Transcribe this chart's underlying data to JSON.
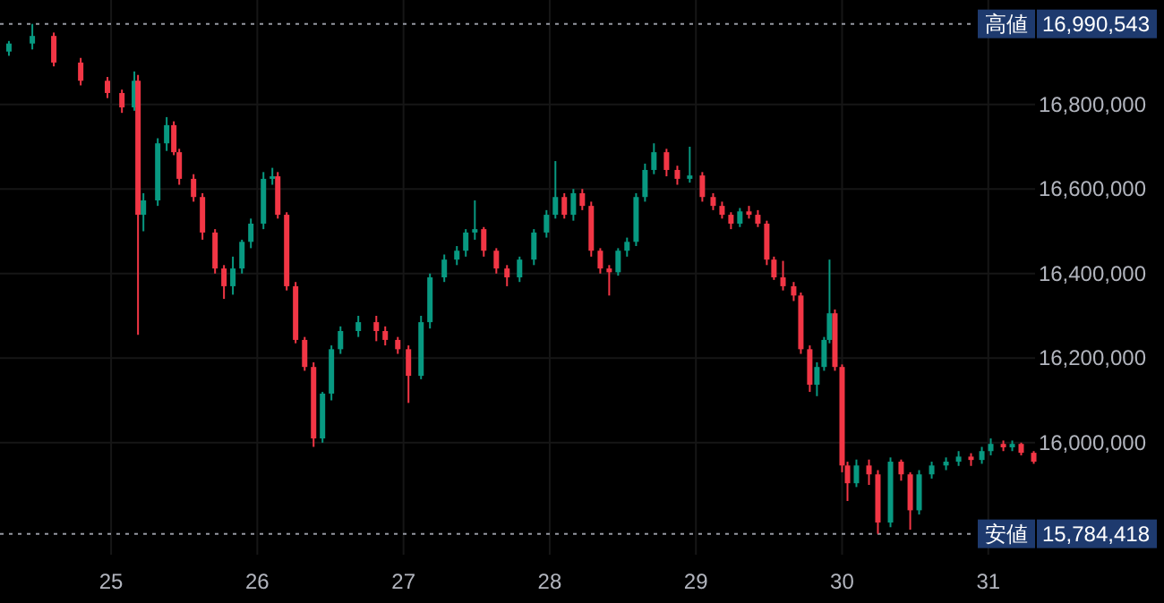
{
  "chart_data": {
    "type": "candlestick",
    "x": [
      24.301,
      24.461,
      24.608,
      24.792,
      24.975,
      25.074,
      25.159,
      25.184,
      25.221,
      25.319,
      25.38,
      25.429,
      25.466,
      25.564,
      25.625,
      25.711,
      25.772,
      25.833,
      25.895,
      25.956,
      26.042,
      26.103,
      26.14,
      26.201,
      26.262,
      26.324,
      26.385,
      26.446,
      26.507,
      26.569,
      26.691,
      26.814,
      26.875,
      26.961,
      27.034,
      27.12,
      27.181,
      27.279,
      27.365,
      27.426,
      27.488,
      27.549,
      27.635,
      27.708,
      27.794,
      27.892,
      27.978,
      28.039,
      28.1,
      28.162,
      28.223,
      28.284,
      28.346,
      28.407,
      28.468,
      28.529,
      28.591,
      28.652,
      28.713,
      28.799,
      28.873,
      28.958,
      29.044,
      29.118,
      29.179,
      29.24,
      29.301,
      29.363,
      29.424,
      29.485,
      29.534,
      29.596,
      29.669,
      29.718,
      29.779,
      29.828,
      29.877,
      29.914,
      29.951,
      30.0,
      30.037,
      30.098,
      30.184,
      30.245,
      30.331,
      30.404,
      30.466,
      30.527,
      30.613,
      30.711,
      30.797,
      30.882,
      30.956,
      31.017,
      31.103,
      31.164,
      31.225,
      31.311
    ],
    "ohlc": [
      [
        16925000,
        16950000,
        16915000,
        16944000
      ],
      [
        16944000,
        16990543,
        16930000,
        16962000
      ],
      [
        16962000,
        16970000,
        16890000,
        16899000
      ],
      [
        16899000,
        16910000,
        16845000,
        16856000
      ],
      [
        16856000,
        16865000,
        16815000,
        16827000
      ],
      [
        16827000,
        16835000,
        16780000,
        16793000
      ],
      [
        16793000,
        16878000,
        16785000,
        16856000
      ],
      [
        16856000,
        16870000,
        16255000,
        16539000
      ],
      [
        16539000,
        16590000,
        16500000,
        16573000
      ],
      [
        16573000,
        16720000,
        16560000,
        16708000
      ],
      [
        16708000,
        16770000,
        16690000,
        16751000
      ],
      [
        16751000,
        16760000,
        16680000,
        16687000
      ],
      [
        16687000,
        16695000,
        16610000,
        16624000
      ],
      [
        16624000,
        16635000,
        16570000,
        16581000
      ],
      [
        16581000,
        16590000,
        16480000,
        16497000
      ],
      [
        16497000,
        16505000,
        16400000,
        16412000
      ],
      [
        16412000,
        16420000,
        16340000,
        16370000
      ],
      [
        16370000,
        16440000,
        16350000,
        16412000
      ],
      [
        16412000,
        16480000,
        16400000,
        16475000
      ],
      [
        16475000,
        16530000,
        16460000,
        16518000
      ],
      [
        16518000,
        16640000,
        16505000,
        16624000
      ],
      [
        16624000,
        16650000,
        16610000,
        16630000
      ],
      [
        16630000,
        16640000,
        16530000,
        16539000
      ],
      [
        16539000,
        16545000,
        16360000,
        16370000
      ],
      [
        16370000,
        16380000,
        16235000,
        16243000
      ],
      [
        16243000,
        16250000,
        16170000,
        16179000
      ],
      [
        16179000,
        16190000,
        15990000,
        16010000
      ],
      [
        16010000,
        16120000,
        16000000,
        16116000
      ],
      [
        16116000,
        16230000,
        16100000,
        16221000
      ],
      [
        16221000,
        16275000,
        16210000,
        16264000
      ],
      [
        16264000,
        16300000,
        16250000,
        16285000
      ],
      [
        16285000,
        16300000,
        16240000,
        16264000
      ],
      [
        16264000,
        16275000,
        16230000,
        16243000
      ],
      [
        16243000,
        16250000,
        16210000,
        16221000
      ],
      [
        16221000,
        16230000,
        16094000,
        16158000
      ],
      [
        16158000,
        16300000,
        16150000,
        16285000
      ],
      [
        16285000,
        16400000,
        16270000,
        16391000
      ],
      [
        16391000,
        16445000,
        16380000,
        16433000
      ],
      [
        16433000,
        16465000,
        16420000,
        16454000
      ],
      [
        16454000,
        16505000,
        16440000,
        16497000
      ],
      [
        16497000,
        16573000,
        16480000,
        16505000
      ],
      [
        16505000,
        16510000,
        16440000,
        16454000
      ],
      [
        16454000,
        16460000,
        16400000,
        16412000
      ],
      [
        16412000,
        16420000,
        16370000,
        16391000
      ],
      [
        16391000,
        16440000,
        16380000,
        16433000
      ],
      [
        16433000,
        16505000,
        16420000,
        16497000
      ],
      [
        16497000,
        16550000,
        16485000,
        16539000
      ],
      [
        16539000,
        16666000,
        16530000,
        16581000
      ],
      [
        16581000,
        16590000,
        16530000,
        16539000
      ],
      [
        16539000,
        16600000,
        16525000,
        16590000
      ],
      [
        16590000,
        16600000,
        16550000,
        16560000
      ],
      [
        16560000,
        16570000,
        16440000,
        16454000
      ],
      [
        16454000,
        16460000,
        16400000,
        16412000
      ],
      [
        16412000,
        16420000,
        16348000,
        16403000
      ],
      [
        16403000,
        16460000,
        16395000,
        16454000
      ],
      [
        16454000,
        16485000,
        16440000,
        16475000
      ],
      [
        16475000,
        16590000,
        16465000,
        16581000
      ],
      [
        16581000,
        16660000,
        16570000,
        16645000
      ],
      [
        16645000,
        16708000,
        16635000,
        16687000
      ],
      [
        16687000,
        16695000,
        16630000,
        16645000
      ],
      [
        16645000,
        16655000,
        16610000,
        16624000
      ],
      [
        16624000,
        16700000,
        16615000,
        16632000
      ],
      [
        16632000,
        16640000,
        16570000,
        16581000
      ],
      [
        16581000,
        16590000,
        16550000,
        16560000
      ],
      [
        16560000,
        16570000,
        16530000,
        16539000
      ],
      [
        16539000,
        16545000,
        16505000,
        16518000
      ],
      [
        16518000,
        16555000,
        16510000,
        16547000
      ],
      [
        16547000,
        16560000,
        16530000,
        16539000
      ],
      [
        16539000,
        16550000,
        16510000,
        16518000
      ],
      [
        16518000,
        16525000,
        16420000,
        16433000
      ],
      [
        16433000,
        16440000,
        16385000,
        16391000
      ],
      [
        16391000,
        16430000,
        16360000,
        16370000
      ],
      [
        16370000,
        16380000,
        16335000,
        16348000
      ],
      [
        16348000,
        16355000,
        16210000,
        16221000
      ],
      [
        16221000,
        16230000,
        16120000,
        16137000
      ],
      [
        16137000,
        16190000,
        16110000,
        16179000
      ],
      [
        16179000,
        16250000,
        16170000,
        16243000
      ],
      [
        16243000,
        16433000,
        16235000,
        16306000
      ],
      [
        16306000,
        16315000,
        16170000,
        16179000
      ],
      [
        16179000,
        16185000,
        15930000,
        15946000
      ],
      [
        15946000,
        15955000,
        15862000,
        15904000
      ],
      [
        15904000,
        15960000,
        15895000,
        15946000
      ],
      [
        15946000,
        15960000,
        15900000,
        15925000
      ],
      [
        15925000,
        15935000,
        15784418,
        15811000
      ],
      [
        15811000,
        15965000,
        15800000,
        15955000
      ],
      [
        15955000,
        15960000,
        15910000,
        15925000
      ],
      [
        15925000,
        15930000,
        15794000,
        15840000
      ],
      [
        15840000,
        15935000,
        15830000,
        15925000
      ],
      [
        15925000,
        15955000,
        15915000,
        15946000
      ],
      [
        15946000,
        15965000,
        15935000,
        15955000
      ],
      [
        15955000,
        15980000,
        15945000,
        15967000
      ],
      [
        15967000,
        15975000,
        15945000,
        15959000
      ],
      [
        15959000,
        15990000,
        15950000,
        15980000
      ],
      [
        15980000,
        16010000,
        15970000,
        15997000
      ],
      [
        15997000,
        16005000,
        15980000,
        15989000
      ],
      [
        15989000,
        16005000,
        15980000,
        15997000
      ],
      [
        15997000,
        16000000,
        15970000,
        15976000
      ],
      [
        15976000,
        15980000,
        15950000,
        15955000
      ]
    ],
    "colors": [
      "#089981",
      "#089981",
      "#f23645",
      "#f23645",
      "#f23645",
      "#f23645",
      "#089981",
      "#f23645",
      "#089981",
      "#089981",
      "#089981",
      "#f23645",
      "#f23645",
      "#f23645",
      "#f23645",
      "#f23645",
      "#f23645",
      "#089981",
      "#089981",
      "#089981",
      "#089981",
      "#089981",
      "#f23645",
      "#f23645",
      "#f23645",
      "#f23645",
      "#f23645",
      "#089981",
      "#089981",
      "#089981",
      "#089981",
      "#f23645",
      "#f23645",
      "#f23645",
      "#f23645",
      "#089981",
      "#089981",
      "#089981",
      "#089981",
      "#089981",
      "#089981",
      "#f23645",
      "#f23645",
      "#f23645",
      "#089981",
      "#089981",
      "#089981",
      "#089981",
      "#f23645",
      "#089981",
      "#f23645",
      "#f23645",
      "#f23645",
      "#f23645",
      "#089981",
      "#089981",
      "#089981",
      "#089981",
      "#089981",
      "#f23645",
      "#f23645",
      "#089981",
      "#f23645",
      "#f23645",
      "#f23645",
      "#f23645",
      "#089981",
      "#f23645",
      "#f23645",
      "#f23645",
      "#f23645",
      "#f23645",
      "#f23645",
      "#f23645",
      "#f23645",
      "#089981",
      "#089981",
      "#089981",
      "#f23645",
      "#f23645",
      "#f23645",
      "#089981",
      "#f23645",
      "#f23645",
      "#089981",
      "#f23645",
      "#f23645",
      "#089981",
      "#089981",
      "#089981",
      "#089981",
      "#f23645",
      "#089981",
      "#089981",
      "#f23645",
      "#089981",
      "#f23645",
      "#f23645"
    ],
    "xlim": [
      24.24,
      31.32
    ],
    "xticks": [
      25,
      26,
      27,
      28,
      29,
      30,
      31
    ],
    "ylim": [
      15735000,
      17047000
    ],
    "yticks": [
      {
        "value": 16000000,
        "label": "16,000,000"
      },
      {
        "value": 16200000,
        "label": "16,200,000"
      },
      {
        "value": 16400000,
        "label": "16,400,000"
      },
      {
        "value": 16600000,
        "label": "16,600,000"
      },
      {
        "value": 16800000,
        "label": "16,800,000"
      }
    ],
    "ref_lines": [
      {
        "axis": "y",
        "value": 16990543,
        "label": "高値",
        "color": "#9598a1",
        "line_style": "dotted"
      },
      {
        "axis": "y",
        "value": 15784418,
        "label": "安値",
        "color": "#9598a1",
        "line_style": "dotted"
      }
    ],
    "annotations": [
      "16,990,543",
      "15,784,418"
    ],
    "grid": true
  }
}
